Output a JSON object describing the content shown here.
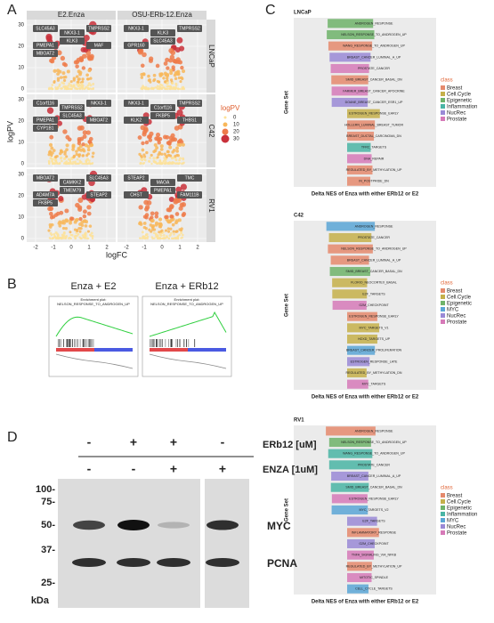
{
  "panel_labels": [
    "A",
    "B",
    "C",
    "D"
  ],
  "panel_a": {
    "columns": [
      "E2.Enza",
      "OSU-ERb-12.Enza"
    ],
    "rows": [
      "LNCaP",
      "C42",
      "RV1"
    ],
    "x_label": "logFC",
    "y_label": "logPV",
    "x_ticks": [
      "-2",
      "-1",
      "0",
      "1",
      "2"
    ],
    "y_ticks": [
      "0",
      "10",
      "20",
      "30"
    ],
    "legend_title": "logPV",
    "legend_items": [
      "0",
      "10",
      "20",
      "30"
    ],
    "genes": [
      [
        [
          "SLC45A3",
          "NKX3-1",
          "TMPRSS2",
          "PMEPA1",
          "KLK3",
          "MAF",
          "MBOAT2"
        ],
        [
          "NKX3-1",
          "KLK3",
          "TMPRSS2",
          "GPR160",
          "SLC45A3"
        ]
      ],
      [
        [
          "C1orf116",
          "TMPRSS2",
          "NKX3-1",
          "PMEPA1",
          "SLC45A3",
          "MBOAT2",
          "CYP1B1"
        ],
        [
          "NKX3-1",
          "C1orf116",
          "TMPRSS2",
          "KLK2",
          "FKBP5",
          "THBS1"
        ]
      ],
      [
        [
          "MBOAT2",
          "CAMKK2",
          "SLC45A3",
          "ADAM7A",
          "TMEM79",
          "STEAP2",
          "FKBP5"
        ],
        [
          "STEAP2",
          "MAOA",
          "TMC",
          "CHST",
          "PMEPA1",
          "FAM111B"
        ]
      ]
    ]
  },
  "panel_b": {
    "titles": [
      "Enza + E2",
      "Enza + ERb12"
    ],
    "plot_title": "Enrichment plot:",
    "plot_subtitle": "NELSON_RESPONSE_TO_ANDROGEN_UP"
  },
  "panel_c": {
    "y_label": "Gene Set",
    "x_label": "Delta NES of Enza with either ERb12 or E2",
    "legend_title": "class",
    "subpanels": [
      {
        "cell_line": "LNCaP",
        "gene_sets": [
          "ANDROGEN_RESPONSE",
          "NELSON_RESPONSE_TO_ANDROGEN_UP",
          "WANG_RESPONSE_TO_ANDROGEN_UP",
          "BREAST_CANCER_LUMINAL_A_UP",
          "PROSTATE_CANCER",
          "SMID_BREAST_CANCER_BASAL_DN",
          "FARMER_BREAST_CANCER_APOCRINE",
          "DOANE_BREAST_CANCER_ESR1_UP",
          "ESTROGEN_RESPONSE_EARLY",
          "HOLLERN_LUMINAL_BREAST_TUMOR",
          "BREAST_DUCTAL_CARCINOMA_DN",
          "TFRC_TARGETS",
          "DNA_REPAIR",
          "REGULATED_BY_METHYLATION_UP",
          "IN_POSTPRIDE_DN"
        ],
        "legend_items": [
          "Breast",
          "Cell.Cycle",
          "Epigenetic",
          "Inflammation",
          "NucRec",
          "Prostate"
        ]
      },
      {
        "cell_line": "C42",
        "gene_sets": [
          "ANDROGEN_RESPONSE",
          "PROSTATE_CANCER",
          "NELSON_RESPONSE_TO_ANDROGEN_UP",
          "BREAST_CANCER_LUMINAL_A_UP",
          "SMID_BREAST_CANCER_BASAL_DN",
          "FLORIO_NEOCORTEX_BASAL",
          "E2F_TARGETS",
          "G2M_CHECKPOINT",
          "ESTROGEN_RESPONSE_EARLY",
          "MYC_TARGETS_V1",
          "HOXD_TARGETS_UP",
          "BREAST_CANCER_PROLIFERATION",
          "ESTROGEN_RESPONSE_LATE",
          "REGULATED_BY_METHYLATION_DN",
          "MYC_TARGETS"
        ],
        "legend_items": [
          "Breast",
          "Cell.Cycle",
          "Epigenetic",
          "MYC",
          "NucRec",
          "Prostate"
        ]
      },
      {
        "cell_line": "RV1",
        "gene_sets": [
          "ANDROGEN_RESPONSE",
          "NELSON_RESPONSE_TO_ANDROGEN_UP",
          "WANG_RESPONSE_TO_ANDROGEN_UP",
          "PROSTATE_CANCER",
          "BREAST_CANCER_LUMINAL_A_UP",
          "SMID_BREAST_CANCER_BASAL_DN",
          "ESTROGEN_RESPONSE_EARLY",
          "MYC_TARGETS_V2",
          "E2F_TARGETS",
          "INFLAMMATORY_RESPONSE",
          "G2M_CHECKPOINT",
          "TNFA_SIGNALING_VIA_NFKB",
          "REGULATED_BY_METHYLATION_UP",
          "MITOTIC_SPINDLE",
          "CELL_CYCLE_TARGETS"
        ],
        "legend_items": [
          "Breast",
          "Cell.Cycle",
          "Epigenetic",
          "Inflammation",
          "MYC",
          "NucRec",
          "Prostate"
        ]
      }
    ]
  },
  "panel_d": {
    "erb12_signs": [
      "-",
      "+",
      "+",
      "-"
    ],
    "erb12_label": "ERb12 [uM]",
    "enza_signs": [
      "-",
      "-",
      "+",
      "+"
    ],
    "enza_label": "ENZA [1uM]",
    "markers": [
      "100-",
      "75-",
      "50-",
      "37-",
      "25-"
    ],
    "unit": "kDa",
    "bands": [
      "MYC",
      "PCNA"
    ]
  }
}
